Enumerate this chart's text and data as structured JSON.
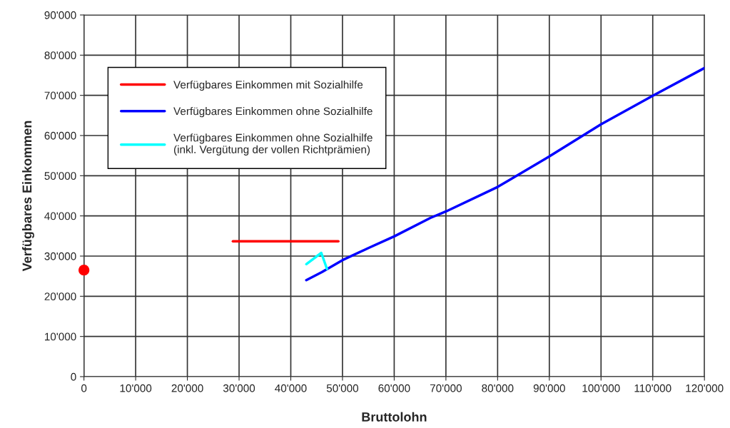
{
  "chart_data": {
    "type": "line",
    "xlabel": "Bruttolohn",
    "ylabel": "Verfügbares Einkommen",
    "xlim": [
      0,
      120000
    ],
    "ylim": [
      0,
      90000
    ],
    "xticks": [
      0,
      {
        "value": 10000,
        "label": "10'000"
      },
      {
        "value": 20000,
        "label": "20'000"
      },
      {
        "value": 30000,
        "label": "30'000"
      },
      {
        "value": 40000,
        "label": "40'000"
      },
      {
        "value": 50000,
        "label": "50'000"
      },
      {
        "value": 60000,
        "label": "60'000"
      },
      {
        "value": 70000,
        "label": "70'000"
      },
      {
        "value": 80000,
        "label": "80'000"
      },
      {
        "value": 90000,
        "label": "90'000"
      },
      {
        "value": 100000,
        "label": "100'000"
      },
      {
        "value": 110000,
        "label": "110'000"
      },
      {
        "value": 120000,
        "label": "120'000"
      }
    ],
    "yticks": [
      0,
      {
        "value": 10000,
        "label": "10'000"
      },
      {
        "value": 20000,
        "label": "20'000"
      },
      {
        "value": 30000,
        "label": "30'000"
      },
      {
        "value": 40000,
        "label": "40'000"
      },
      {
        "value": 50000,
        "label": "50'000"
      },
      {
        "value": 60000,
        "label": "60'000"
      },
      {
        "value": 70000,
        "label": "70'000"
      },
      {
        "value": 80000,
        "label": "80'000"
      },
      {
        "value": 90000,
        "label": "90'000"
      }
    ],
    "grid": true,
    "legend": "top left",
    "line_style": "solid",
    "series": [
      {
        "type": "scatter",
        "marker": "circle",
        "color": "#ff0000",
        "x": [
          0
        ],
        "values": [
          26500
        ]
      },
      {
        "name": "Verfügbares Einkommen mit Sozialhilfe",
        "color": "#ff0000",
        "x": [
          28800,
          49200
        ],
        "values": [
          33700,
          33700
        ]
      },
      {
        "name": "Verfügbares Einkommen ohne Sozialhilfe",
        "color": "#0000ff",
        "x": [
          43000,
          46000,
          50000,
          55000,
          60000,
          67000,
          70000,
          80000,
          90000,
          100000,
          110000,
          120000
        ],
        "values": [
          24000,
          26000,
          29000,
          32000,
          34900,
          39500,
          41100,
          47200,
          54800,
          62800,
          69900,
          76800
        ]
      },
      {
        "name": "Verfügbares Einkommen ohne Sozialhilfe\n(inkl. Vergütung der vollen Richtprämien)",
        "color": "#00ffff",
        "x": [
          43000,
          45900,
          47000
        ],
        "values": [
          28000,
          30800,
          26800
        ]
      }
    ]
  }
}
